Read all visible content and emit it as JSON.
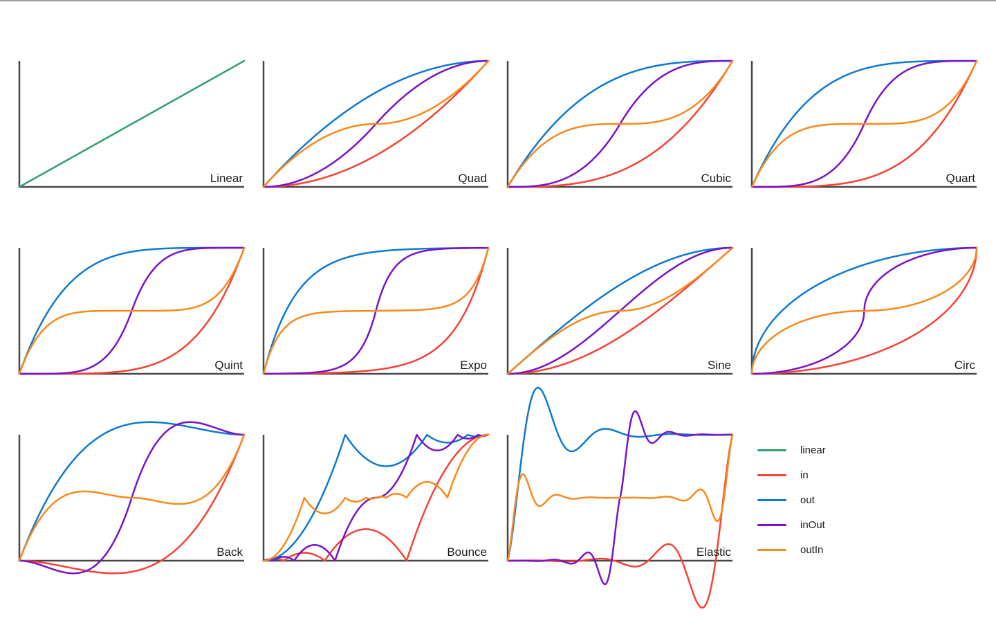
{
  "figure": {
    "kind": "easing-functions-overview",
    "background": "#ffffff",
    "top_border_color": "#9e9e9e"
  },
  "colors": {
    "linear": "#2f9e6e",
    "in": "#f74135",
    "out": "#0d79d1",
    "inOut": "#7a12c6",
    "outIn": "#f8891b"
  },
  "axis": {
    "color": "#474747",
    "title_color": "#1c1c1c"
  },
  "legend": {
    "position": "bottom-right",
    "items": [
      {
        "name": "linear",
        "label": "linear"
      },
      {
        "name": "in",
        "label": "in"
      },
      {
        "name": "out",
        "label": "out"
      },
      {
        "name": "inOut",
        "label": "inOut"
      },
      {
        "name": "outIn",
        "label": "outIn"
      }
    ]
  },
  "chart_data": [
    {
      "type": "line",
      "title": "Linear",
      "easing_family": "Linear",
      "x_range": [
        0,
        1
      ],
      "y_range": [
        0,
        1
      ],
      "grid": false,
      "series": [
        {
          "name": "linear",
          "easing": "Linear"
        }
      ]
    },
    {
      "type": "line",
      "title": "Quad",
      "easing_family": "Quad",
      "x_range": [
        0,
        1
      ],
      "y_range": [
        0,
        1
      ],
      "grid": false,
      "series": [
        {
          "name": "in",
          "easing": "Quad.in"
        },
        {
          "name": "out",
          "easing": "Quad.out"
        },
        {
          "name": "inOut",
          "easing": "Quad.inOut"
        },
        {
          "name": "outIn",
          "easing": "Quad.outIn"
        }
      ]
    },
    {
      "type": "line",
      "title": "Cubic",
      "easing_family": "Cubic",
      "x_range": [
        0,
        1
      ],
      "y_range": [
        0,
        1
      ],
      "grid": false,
      "series": [
        {
          "name": "in",
          "easing": "Cubic.in"
        },
        {
          "name": "out",
          "easing": "Cubic.out"
        },
        {
          "name": "inOut",
          "easing": "Cubic.inOut"
        },
        {
          "name": "outIn",
          "easing": "Cubic.outIn"
        }
      ]
    },
    {
      "type": "line",
      "title": "Quart",
      "easing_family": "Quart",
      "x_range": [
        0,
        1
      ],
      "y_range": [
        0,
        1
      ],
      "grid": false,
      "series": [
        {
          "name": "in",
          "easing": "Quart.in"
        },
        {
          "name": "out",
          "easing": "Quart.out"
        },
        {
          "name": "inOut",
          "easing": "Quart.inOut"
        },
        {
          "name": "outIn",
          "easing": "Quart.outIn"
        }
      ]
    },
    {
      "type": "line",
      "title": "Quint",
      "easing_family": "Quint",
      "x_range": [
        0,
        1
      ],
      "y_range": [
        0,
        1
      ],
      "grid": false,
      "series": [
        {
          "name": "in",
          "easing": "Quint.in"
        },
        {
          "name": "out",
          "easing": "Quint.out"
        },
        {
          "name": "inOut",
          "easing": "Quint.inOut"
        },
        {
          "name": "outIn",
          "easing": "Quint.outIn"
        }
      ]
    },
    {
      "type": "line",
      "title": "Expo",
      "easing_family": "Expo",
      "x_range": [
        0,
        1
      ],
      "y_range": [
        0,
        1
      ],
      "grid": false,
      "series": [
        {
          "name": "in",
          "easing": "Expo.in"
        },
        {
          "name": "out",
          "easing": "Expo.out"
        },
        {
          "name": "inOut",
          "easing": "Expo.inOut"
        },
        {
          "name": "outIn",
          "easing": "Expo.outIn"
        }
      ]
    },
    {
      "type": "line",
      "title": "Sine",
      "easing_family": "Sine",
      "x_range": [
        0,
        1
      ],
      "y_range": [
        0,
        1
      ],
      "grid": false,
      "series": [
        {
          "name": "in",
          "easing": "Sine.in"
        },
        {
          "name": "out",
          "easing": "Sine.out"
        },
        {
          "name": "inOut",
          "easing": "Sine.inOut"
        },
        {
          "name": "outIn",
          "easing": "Sine.outIn"
        }
      ]
    },
    {
      "type": "line",
      "title": "Circ",
      "easing_family": "Circ",
      "x_range": [
        0,
        1
      ],
      "y_range": [
        0,
        1
      ],
      "grid": false,
      "series": [
        {
          "name": "in",
          "easing": "Circ.in"
        },
        {
          "name": "out",
          "easing": "Circ.out"
        },
        {
          "name": "inOut",
          "easing": "Circ.inOut"
        },
        {
          "name": "outIn",
          "easing": "Circ.outIn"
        }
      ]
    },
    {
      "type": "line",
      "title": "Back",
      "easing_family": "Back",
      "x_range": [
        0,
        1
      ],
      "y_range": [
        0,
        1
      ],
      "grid": false,
      "series": [
        {
          "name": "in",
          "easing": "Back.in"
        },
        {
          "name": "out",
          "easing": "Back.out"
        },
        {
          "name": "inOut",
          "easing": "Back.inOut"
        },
        {
          "name": "outIn",
          "easing": "Back.outIn"
        }
      ]
    },
    {
      "type": "line",
      "title": "Bounce",
      "easing_family": "Bounce",
      "x_range": [
        0,
        1
      ],
      "y_range": [
        0,
        1
      ],
      "grid": false,
      "series": [
        {
          "name": "in",
          "easing": "Bounce.in"
        },
        {
          "name": "out",
          "easing": "Bounce.out"
        },
        {
          "name": "inOut",
          "easing": "Bounce.inOut"
        },
        {
          "name": "outIn",
          "easing": "Bounce.outIn"
        }
      ]
    },
    {
      "type": "line",
      "title": "Elastic",
      "easing_family": "Elastic",
      "x_range": [
        0,
        1
      ],
      "y_range": [
        0,
        1
      ],
      "grid": false,
      "series": [
        {
          "name": "in",
          "easing": "Elastic.in"
        },
        {
          "name": "out",
          "easing": "Elastic.out"
        },
        {
          "name": "inOut",
          "easing": "Elastic.inOut"
        },
        {
          "name": "outIn",
          "easing": "Elastic.outIn"
        }
      ]
    }
  ]
}
